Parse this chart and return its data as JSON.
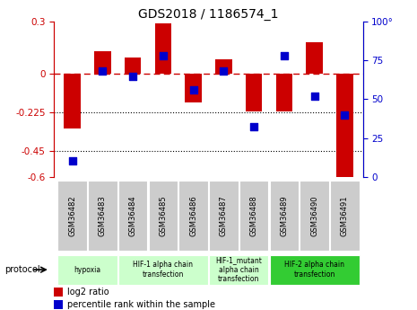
{
  "title": "GDS2018 / 1186574_1",
  "samples": [
    "GSM36482",
    "GSM36483",
    "GSM36484",
    "GSM36485",
    "GSM36486",
    "GSM36487",
    "GSM36488",
    "GSM36489",
    "GSM36490",
    "GSM36491"
  ],
  "log2_ratio": [
    -0.32,
    0.13,
    0.09,
    0.29,
    -0.17,
    0.08,
    -0.22,
    -0.22,
    0.18,
    -0.6
  ],
  "percentile_rank": [
    10,
    68,
    65,
    78,
    56,
    68,
    32,
    78,
    52,
    40
  ],
  "ylim_left": [
    -0.6,
    0.3
  ],
  "ylim_right": [
    0,
    100
  ],
  "yticks_left": [
    0.3,
    0.0,
    -0.225,
    -0.45,
    -0.6
  ],
  "yticks_left_labels": [
    "0.3",
    "0",
    "-0.225",
    "-0.45",
    "-0.6"
  ],
  "yticks_right": [
    100,
    75,
    50,
    25,
    0
  ],
  "yticks_right_labels": [
    "100°",
    "75",
    "50",
    "25",
    "0"
  ],
  "hlines_dotted": [
    -0.225,
    -0.45
  ],
  "bar_color": "#cc0000",
  "dot_color": "#0000cc",
  "bar_width": 0.55,
  "dot_size": 40,
  "group_spans": [
    {
      "start": 0,
      "end": 1,
      "label": "hypoxia",
      "color": "#ccffcc"
    },
    {
      "start": 2,
      "end": 4,
      "label": "HIF-1 alpha chain\ntransfection",
      "color": "#ccffcc"
    },
    {
      "start": 5,
      "end": 6,
      "label": "HIF-1_mutant\nalpha chain\ntransfection",
      "color": "#ccffcc"
    },
    {
      "start": 7,
      "end": 9,
      "label": "HIF-2 alpha chain\ntransfection",
      "color": "#33cc33"
    }
  ],
  "protocol_label": "protocol",
  "legend_log2": "log2 ratio",
  "legend_pct": "percentile rank within the sample",
  "bar_label_color": "#cc0000",
  "dot_label_color": "#0000cc",
  "sample_box_color": "#cccccc",
  "fig_bg": "#ffffff"
}
